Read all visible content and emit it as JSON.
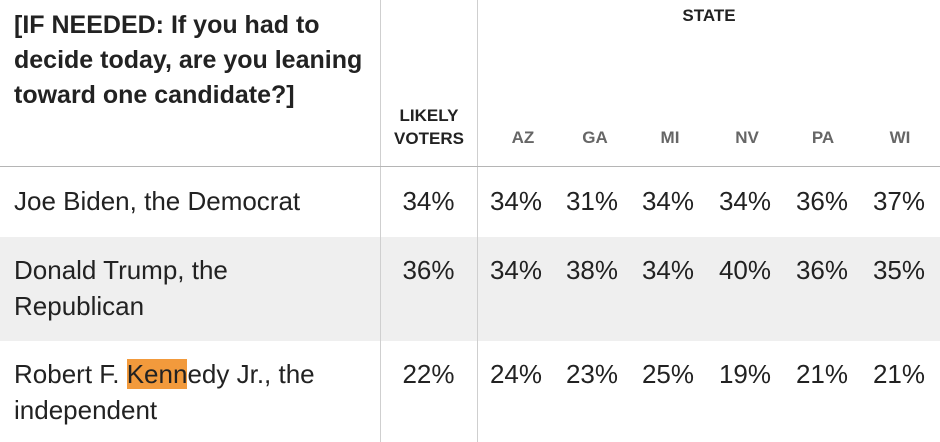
{
  "header": {
    "question": "[IF NEEDED: If you had to decide today, are you leaning toward one candidate?]",
    "likely_line1": "LIKELY",
    "likely_line2": "VOTERS",
    "state_group": "STATE",
    "states": [
      "AZ",
      "GA",
      "MI",
      "NV",
      "PA",
      "WI"
    ]
  },
  "rows": [
    {
      "label": "Joe Biden, the Democrat",
      "likely": "34%",
      "states": [
        "34%",
        "31%",
        "34%",
        "34%",
        "36%",
        "37%"
      ]
    },
    {
      "label": "Donald Trump, the Republican",
      "likely": "36%",
      "states": [
        "34%",
        "38%",
        "34%",
        "40%",
        "36%",
        "35%"
      ]
    },
    {
      "label_before": "Robert F. ",
      "label_highlight": "Kenn",
      "label_after": "edy Jr., the independent",
      "likely": "22%",
      "states": [
        "24%",
        "23%",
        "25%",
        "19%",
        "21%",
        "21%"
      ]
    }
  ],
  "colors": {
    "highlight": "#f29a3c",
    "shaded_row": "#efefef"
  }
}
